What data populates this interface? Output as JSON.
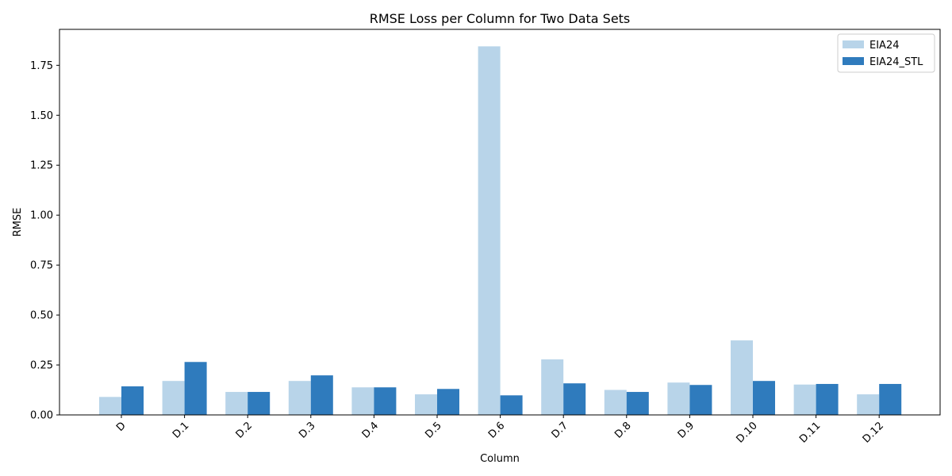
{
  "chart_data": {
    "type": "bar",
    "title": "RMSE Loss per Column for Two Data Sets",
    "xlabel": "Column",
    "ylabel": "RMSE",
    "categories": [
      "D",
      "D.1",
      "D.2",
      "D.3",
      "D.4",
      "D.5",
      "D.6",
      "D.7",
      "D.8",
      "D.9",
      "D.10",
      "D.11",
      "D.12"
    ],
    "series": [
      {
        "name": "EIA24",
        "color": "#b8d4e9",
        "values": [
          0.09,
          0.17,
          0.115,
          0.17,
          0.138,
          0.103,
          1.845,
          0.278,
          0.125,
          0.162,
          0.373,
          0.152,
          0.103
        ]
      },
      {
        "name": "EIA24_STL",
        "color": "#2f7bbd",
        "values": [
          0.143,
          0.265,
          0.115,
          0.198,
          0.138,
          0.13,
          0.098,
          0.158,
          0.115,
          0.15,
          0.17,
          0.155,
          0.155
        ]
      }
    ],
    "ylim": [
      0,
      1.93
    ],
    "yticks": [
      "0.00",
      "0.25",
      "0.50",
      "0.75",
      "1.00",
      "1.25",
      "1.50",
      "1.75"
    ],
    "grid": false,
    "legend_position": "top-right"
  }
}
